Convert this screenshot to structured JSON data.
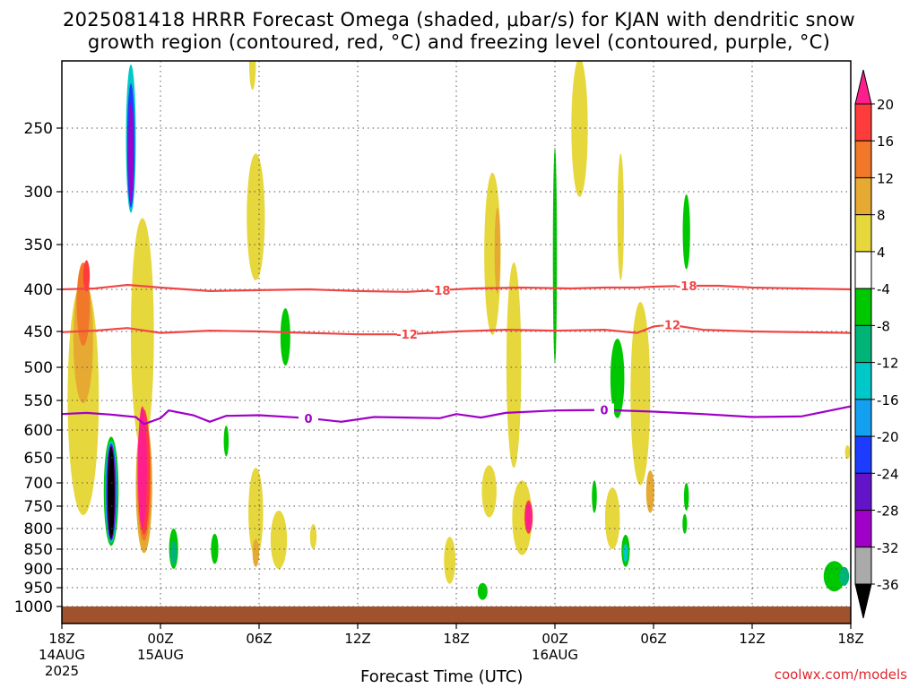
{
  "chart_data": {
    "type": "heatmap",
    "title_line1": "2025081418 HRRR Forecast Omega (shaded, μbar/s) for KJAN with dendritic snow",
    "title_line2": "growth region (contoured, red, °C) and freezing level (contoured, purple, °C)",
    "xlabel": "Forecast Time (UTC)",
    "credit": "coolwx.com/models",
    "y_axis": {
      "scale": "pressure",
      "units": "hPa",
      "reversed": true,
      "range": [
        200,
        1010
      ],
      "ticks": [
        250,
        300,
        350,
        400,
        450,
        500,
        550,
        600,
        650,
        700,
        750,
        800,
        850,
        900,
        950,
        1000
      ]
    },
    "x_axis": {
      "range_hours": [
        0,
        48
      ],
      "ticks": [
        {
          "hour": 0,
          "label": "18Z",
          "sub1": "14AUG",
          "sub2": "2025"
        },
        {
          "hour": 6,
          "label": "00Z",
          "sub1": "15AUG",
          "sub2": ""
        },
        {
          "hour": 12,
          "label": "06Z",
          "sub1": "",
          "sub2": ""
        },
        {
          "hour": 18,
          "label": "12Z",
          "sub1": "",
          "sub2": ""
        },
        {
          "hour": 24,
          "label": "18Z",
          "sub1": "",
          "sub2": ""
        },
        {
          "hour": 30,
          "label": "00Z",
          "sub1": "16AUG",
          "sub2": ""
        },
        {
          "hour": 36,
          "label": "06Z",
          "sub1": "",
          "sub2": ""
        },
        {
          "hour": 42,
          "label": "12Z",
          "sub1": "",
          "sub2": ""
        },
        {
          "hour": 48,
          "label": "18Z",
          "sub1": "",
          "sub2": ""
        }
      ]
    },
    "grid": true,
    "colorbar": {
      "labels": [
        "20",
        "16",
        "12",
        "8",
        "4",
        "-4",
        "-8",
        "-12",
        "-16",
        "-20",
        "-24",
        "-28",
        "-32",
        "-36"
      ],
      "colors": [
        "#ff1f8c",
        "#ff3c3c",
        "#f07828",
        "#e6aa32",
        "#e6d73c",
        "#ffffff",
        "#00c800",
        "#00b478",
        "#00c8c8",
        "#14a0f0",
        "#1e3cff",
        "#6414c8",
        "#a000c8",
        "#aaaaaa",
        "#000000"
      ]
    },
    "contours": [
      {
        "label": "-18",
        "color": "#f04646",
        "points": [
          [
            0,
            400
          ],
          [
            2,
            399
          ],
          [
            4,
            395
          ],
          [
            6,
            398
          ],
          [
            9,
            402
          ],
          [
            12,
            401
          ],
          [
            15,
            400
          ],
          [
            18,
            402
          ],
          [
            21,
            403
          ],
          [
            23,
            401
          ],
          [
            25,
            399
          ],
          [
            28,
            398
          ],
          [
            31,
            399
          ],
          [
            33,
            398
          ],
          [
            35,
            398
          ],
          [
            36,
            397
          ],
          [
            38,
            396
          ],
          [
            40,
            396
          ],
          [
            42,
            398
          ],
          [
            45,
            399
          ],
          [
            48,
            400
          ]
        ]
      },
      {
        "label": "-12",
        "color": "#f04646",
        "points": [
          [
            0,
            451
          ],
          [
            2,
            449
          ],
          [
            4,
            446
          ],
          [
            6,
            452
          ],
          [
            9,
            449
          ],
          [
            12,
            450
          ],
          [
            15,
            452
          ],
          [
            18,
            454
          ],
          [
            21,
            454
          ],
          [
            24,
            450
          ],
          [
            27,
            448
          ],
          [
            30,
            449
          ],
          [
            33,
            448
          ],
          [
            35,
            452
          ],
          [
            36,
            444
          ],
          [
            37,
            442
          ],
          [
            39,
            448
          ],
          [
            42,
            450
          ],
          [
            45,
            451
          ],
          [
            48,
            452
          ]
        ]
      },
      {
        "label": "0",
        "color": "#a000c8",
        "points": [
          [
            0,
            573
          ],
          [
            1.5,
            571
          ],
          [
            3,
            574
          ],
          [
            4.5,
            578
          ],
          [
            5,
            590
          ],
          [
            6,
            580
          ],
          [
            6.5,
            567
          ],
          [
            8,
            575
          ],
          [
            9,
            586
          ],
          [
            10,
            576
          ],
          [
            12,
            575
          ],
          [
            15,
            580
          ],
          [
            17,
            586
          ],
          [
            19,
            578
          ],
          [
            21,
            579
          ],
          [
            23,
            580
          ],
          [
            24,
            573
          ],
          [
            25.5,
            579
          ],
          [
            27,
            571
          ],
          [
            30,
            567
          ],
          [
            33,
            566
          ],
          [
            36,
            569
          ],
          [
            39,
            573
          ],
          [
            42,
            578
          ],
          [
            45,
            577
          ],
          [
            48,
            560
          ]
        ]
      }
    ],
    "omega_blobs": [
      {
        "color": "#e6d73c",
        "hour": 1.3,
        "p": 580,
        "dh": 1.9,
        "dp": 380
      },
      {
        "color": "#e6aa32",
        "hour": 1.3,
        "p": 470,
        "dh": 1.2,
        "dp": 170
      },
      {
        "color": "#f07828",
        "hour": 1.3,
        "p": 420,
        "dh": 0.8,
        "dp": 100
      },
      {
        "color": "#ff3c3c",
        "hour": 1.5,
        "p": 385,
        "dh": 0.4,
        "dp": 35
      },
      {
        "color": "#00c800",
        "hour": 3.0,
        "p": 727,
        "dh": 0.9,
        "dp": 230
      },
      {
        "color": "#00c8c8",
        "hour": 3.0,
        "p": 727,
        "dh": 0.75,
        "dp": 215
      },
      {
        "color": "#1e3cff",
        "hour": 3.0,
        "p": 727,
        "dh": 0.62,
        "dp": 205
      },
      {
        "color": "#a000c8",
        "hour": 3.0,
        "p": 727,
        "dh": 0.52,
        "dp": 200
      },
      {
        "color": "#000000",
        "hour": 3.0,
        "p": 727,
        "dh": 0.42,
        "dp": 195
      },
      {
        "color": "#e6d73c",
        "hour": 4.9,
        "p": 480,
        "dh": 1.4,
        "dp": 310
      },
      {
        "color": "#00c8c8",
        "hour": 4.2,
        "p": 260,
        "dh": 0.6,
        "dp": 120
      },
      {
        "color": "#1e3cff",
        "hour": 4.2,
        "p": 265,
        "dh": 0.45,
        "dp": 100
      },
      {
        "color": "#a000c8",
        "hour": 4.2,
        "p": 270,
        "dh": 0.3,
        "dp": 80
      },
      {
        "color": "#e6aa32",
        "hour": 5.0,
        "p": 720,
        "dh": 1.0,
        "dp": 280
      },
      {
        "color": "#f07828",
        "hour": 5.0,
        "p": 700,
        "dh": 0.85,
        "dp": 260
      },
      {
        "color": "#ff3c3c",
        "hour": 5.0,
        "p": 690,
        "dh": 0.7,
        "dp": 250
      },
      {
        "color": "#ff1f8c",
        "hour": 4.9,
        "p": 680,
        "dh": 0.55,
        "dp": 240
      },
      {
        "color": "#00c800",
        "hour": 6.8,
        "p": 850,
        "dh": 0.55,
        "dp": 100
      },
      {
        "color": "#00b478",
        "hour": 6.8,
        "p": 860,
        "dh": 0.4,
        "dp": 60
      },
      {
        "color": "#00c800",
        "hour": 9.3,
        "p": 850,
        "dh": 0.45,
        "dp": 75
      },
      {
        "color": "#00c800",
        "hour": 10.0,
        "p": 620,
        "dh": 0.3,
        "dp": 55
      },
      {
        "color": "#e6d73c",
        "hour": 11.8,
        "p": 330,
        "dh": 1.1,
        "dp": 120
      },
      {
        "color": "#e6d73c",
        "hour": 11.6,
        "p": 200,
        "dh": 0.4,
        "dp": 40
      },
      {
        "color": "#e6d73c",
        "hour": 11.8,
        "p": 770,
        "dh": 0.9,
        "dp": 200
      },
      {
        "color": "#e6aa32",
        "hour": 11.8,
        "p": 860,
        "dh": 0.4,
        "dp": 70
      },
      {
        "color": "#e6d73c",
        "hour": 13.2,
        "p": 830,
        "dh": 1.0,
        "dp": 140
      },
      {
        "color": "#00c800",
        "hour": 13.6,
        "p": 460,
        "dh": 0.6,
        "dp": 75
      },
      {
        "color": "#e6d73c",
        "hour": 15.3,
        "p": 820,
        "dh": 0.4,
        "dp": 60
      },
      {
        "color": "#e6d73c",
        "hour": 23.6,
        "p": 880,
        "dh": 0.7,
        "dp": 120
      },
      {
        "color": "#e6d73c",
        "hour": 26.2,
        "p": 370,
        "dh": 1.0,
        "dp": 170
      },
      {
        "color": "#e6aa32",
        "hour": 26.5,
        "p": 360,
        "dh": 0.35,
        "dp": 90
      },
      {
        "color": "#e6d73c",
        "hour": 27.5,
        "p": 520,
        "dh": 0.9,
        "dp": 300
      },
      {
        "color": "#e6d73c",
        "hour": 26.0,
        "p": 720,
        "dh": 0.9,
        "dp": 110
      },
      {
        "color": "#e6d73c",
        "hour": 28.0,
        "p": 780,
        "dh": 1.2,
        "dp": 170
      },
      {
        "color": "#ff3c3c",
        "hour": 28.4,
        "p": 775,
        "dh": 0.5,
        "dp": 75
      },
      {
        "color": "#ff1f8c",
        "hour": 28.4,
        "p": 775,
        "dh": 0.38,
        "dp": 60
      },
      {
        "color": "#00c800",
        "hour": 25.6,
        "p": 960,
        "dh": 0.6,
        "dp": 45
      },
      {
        "color": "#00c800",
        "hour": 30.0,
        "p": 380,
        "dh": 0.25,
        "dp": 230
      },
      {
        "color": "#e6d73c",
        "hour": 31.5,
        "p": 250,
        "dh": 1.0,
        "dp": 110
      },
      {
        "color": "#00c800",
        "hour": 32.4,
        "p": 730,
        "dh": 0.3,
        "dp": 70
      },
      {
        "color": "#00c800",
        "hour": 33.8,
        "p": 520,
        "dh": 0.85,
        "dp": 120
      },
      {
        "color": "#e6d73c",
        "hour": 34.0,
        "p": 330,
        "dh": 0.4,
        "dp": 120
      },
      {
        "color": "#e6d73c",
        "hour": 35.2,
        "p": 560,
        "dh": 1.2,
        "dp": 290
      },
      {
        "color": "#e6aa32",
        "hour": 35.8,
        "p": 720,
        "dh": 0.5,
        "dp": 90
      },
      {
        "color": "#00c800",
        "hour": 38.0,
        "p": 340,
        "dh": 0.45,
        "dp": 75
      },
      {
        "color": "#00c800",
        "hour": 38.0,
        "p": 730,
        "dh": 0.3,
        "dp": 60
      },
      {
        "color": "#00c800",
        "hour": 37.9,
        "p": 790,
        "dh": 0.28,
        "dp": 45
      },
      {
        "color": "#e6d73c",
        "hour": 33.5,
        "p": 780,
        "dh": 0.9,
        "dp": 140
      },
      {
        "color": "#00c800",
        "hour": 34.3,
        "p": 855,
        "dh": 0.5,
        "dp": 80
      },
      {
        "color": "#00c8c8",
        "hour": 34.3,
        "p": 860,
        "dh": 0.3,
        "dp": 45
      },
      {
        "color": "#00c800",
        "hour": 47.0,
        "p": 920,
        "dh": 1.3,
        "dp": 80
      },
      {
        "color": "#00b478",
        "hour": 47.6,
        "p": 920,
        "dh": 0.6,
        "dp": 50
      },
      {
        "color": "#e6d73c",
        "hour": 47.8,
        "p": 640,
        "dh": 0.3,
        "dp": 25
      }
    ]
  }
}
